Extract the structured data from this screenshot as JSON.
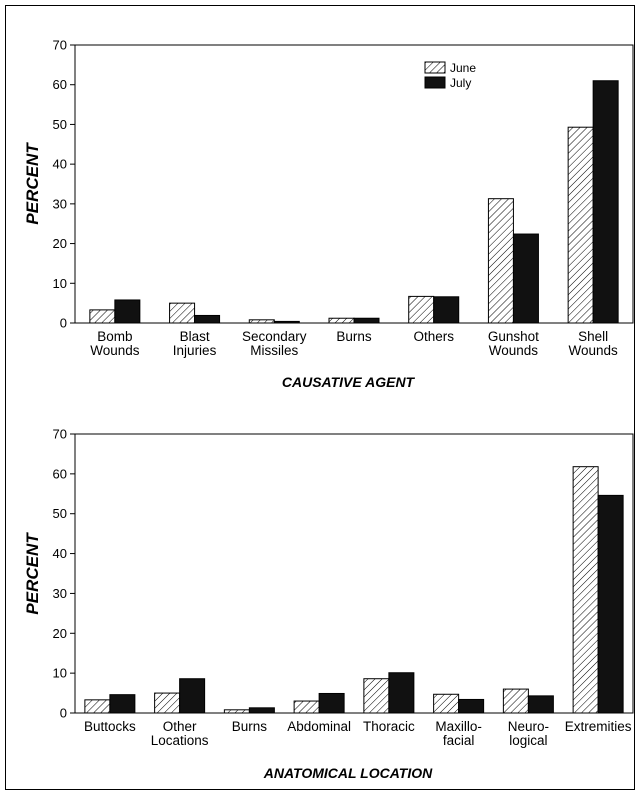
{
  "chart_data": [
    {
      "type": "bar",
      "ylabel": "PERCENT",
      "xlabel": "CAUSATIVE AGENT",
      "ylim": [
        0,
        70
      ],
      "yticks": [
        0,
        10,
        20,
        30,
        40,
        50,
        60,
        70
      ],
      "categories": [
        [
          "Bomb",
          "Wounds"
        ],
        [
          "Blast",
          "Injuries"
        ],
        [
          "Secondary",
          "Missiles"
        ],
        [
          "Burns"
        ],
        [
          "Others"
        ],
        [
          "Gunshot",
          "Wounds"
        ],
        [
          "Shell",
          "Wounds"
        ]
      ],
      "series": [
        {
          "name": "June",
          "pattern": "hatch",
          "values": [
            3.3,
            5.0,
            0.8,
            1.2,
            6.7,
            31.3,
            49.3
          ]
        },
        {
          "name": "July",
          "pattern": "solid",
          "values": [
            5.8,
            1.9,
            0.4,
            1.2,
            6.6,
            22.4,
            61.0
          ]
        }
      ],
      "legend": {
        "position": "top-right",
        "items": [
          "June",
          "July"
        ]
      },
      "grid": false
    },
    {
      "type": "bar",
      "ylabel": "PERCENT",
      "xlabel": "ANATOMICAL LOCATION",
      "ylim": [
        0,
        70
      ],
      "yticks": [
        0,
        10,
        20,
        30,
        40,
        50,
        60,
        70
      ],
      "categories": [
        [
          "Buttocks"
        ],
        [
          "Other",
          "Locations"
        ],
        [
          "Burns"
        ],
        [
          "Abdominal"
        ],
        [
          "Thoracic"
        ],
        [
          "Maxillo-",
          "facial"
        ],
        [
          "Neuro-",
          "logical"
        ],
        [
          "Extremities"
        ]
      ],
      "series": [
        {
          "name": "June",
          "pattern": "hatch",
          "values": [
            3.3,
            5.0,
            0.8,
            3.0,
            8.6,
            4.7,
            6.0,
            61.8
          ]
        },
        {
          "name": "July",
          "pattern": "solid",
          "values": [
            4.6,
            8.6,
            1.3,
            4.9,
            10.1,
            3.4,
            4.3,
            54.6
          ]
        }
      ],
      "grid": false
    }
  ],
  "colors": {
    "solid": "#111111",
    "hatch_stroke": "#000000",
    "background": "#ffffff"
  }
}
